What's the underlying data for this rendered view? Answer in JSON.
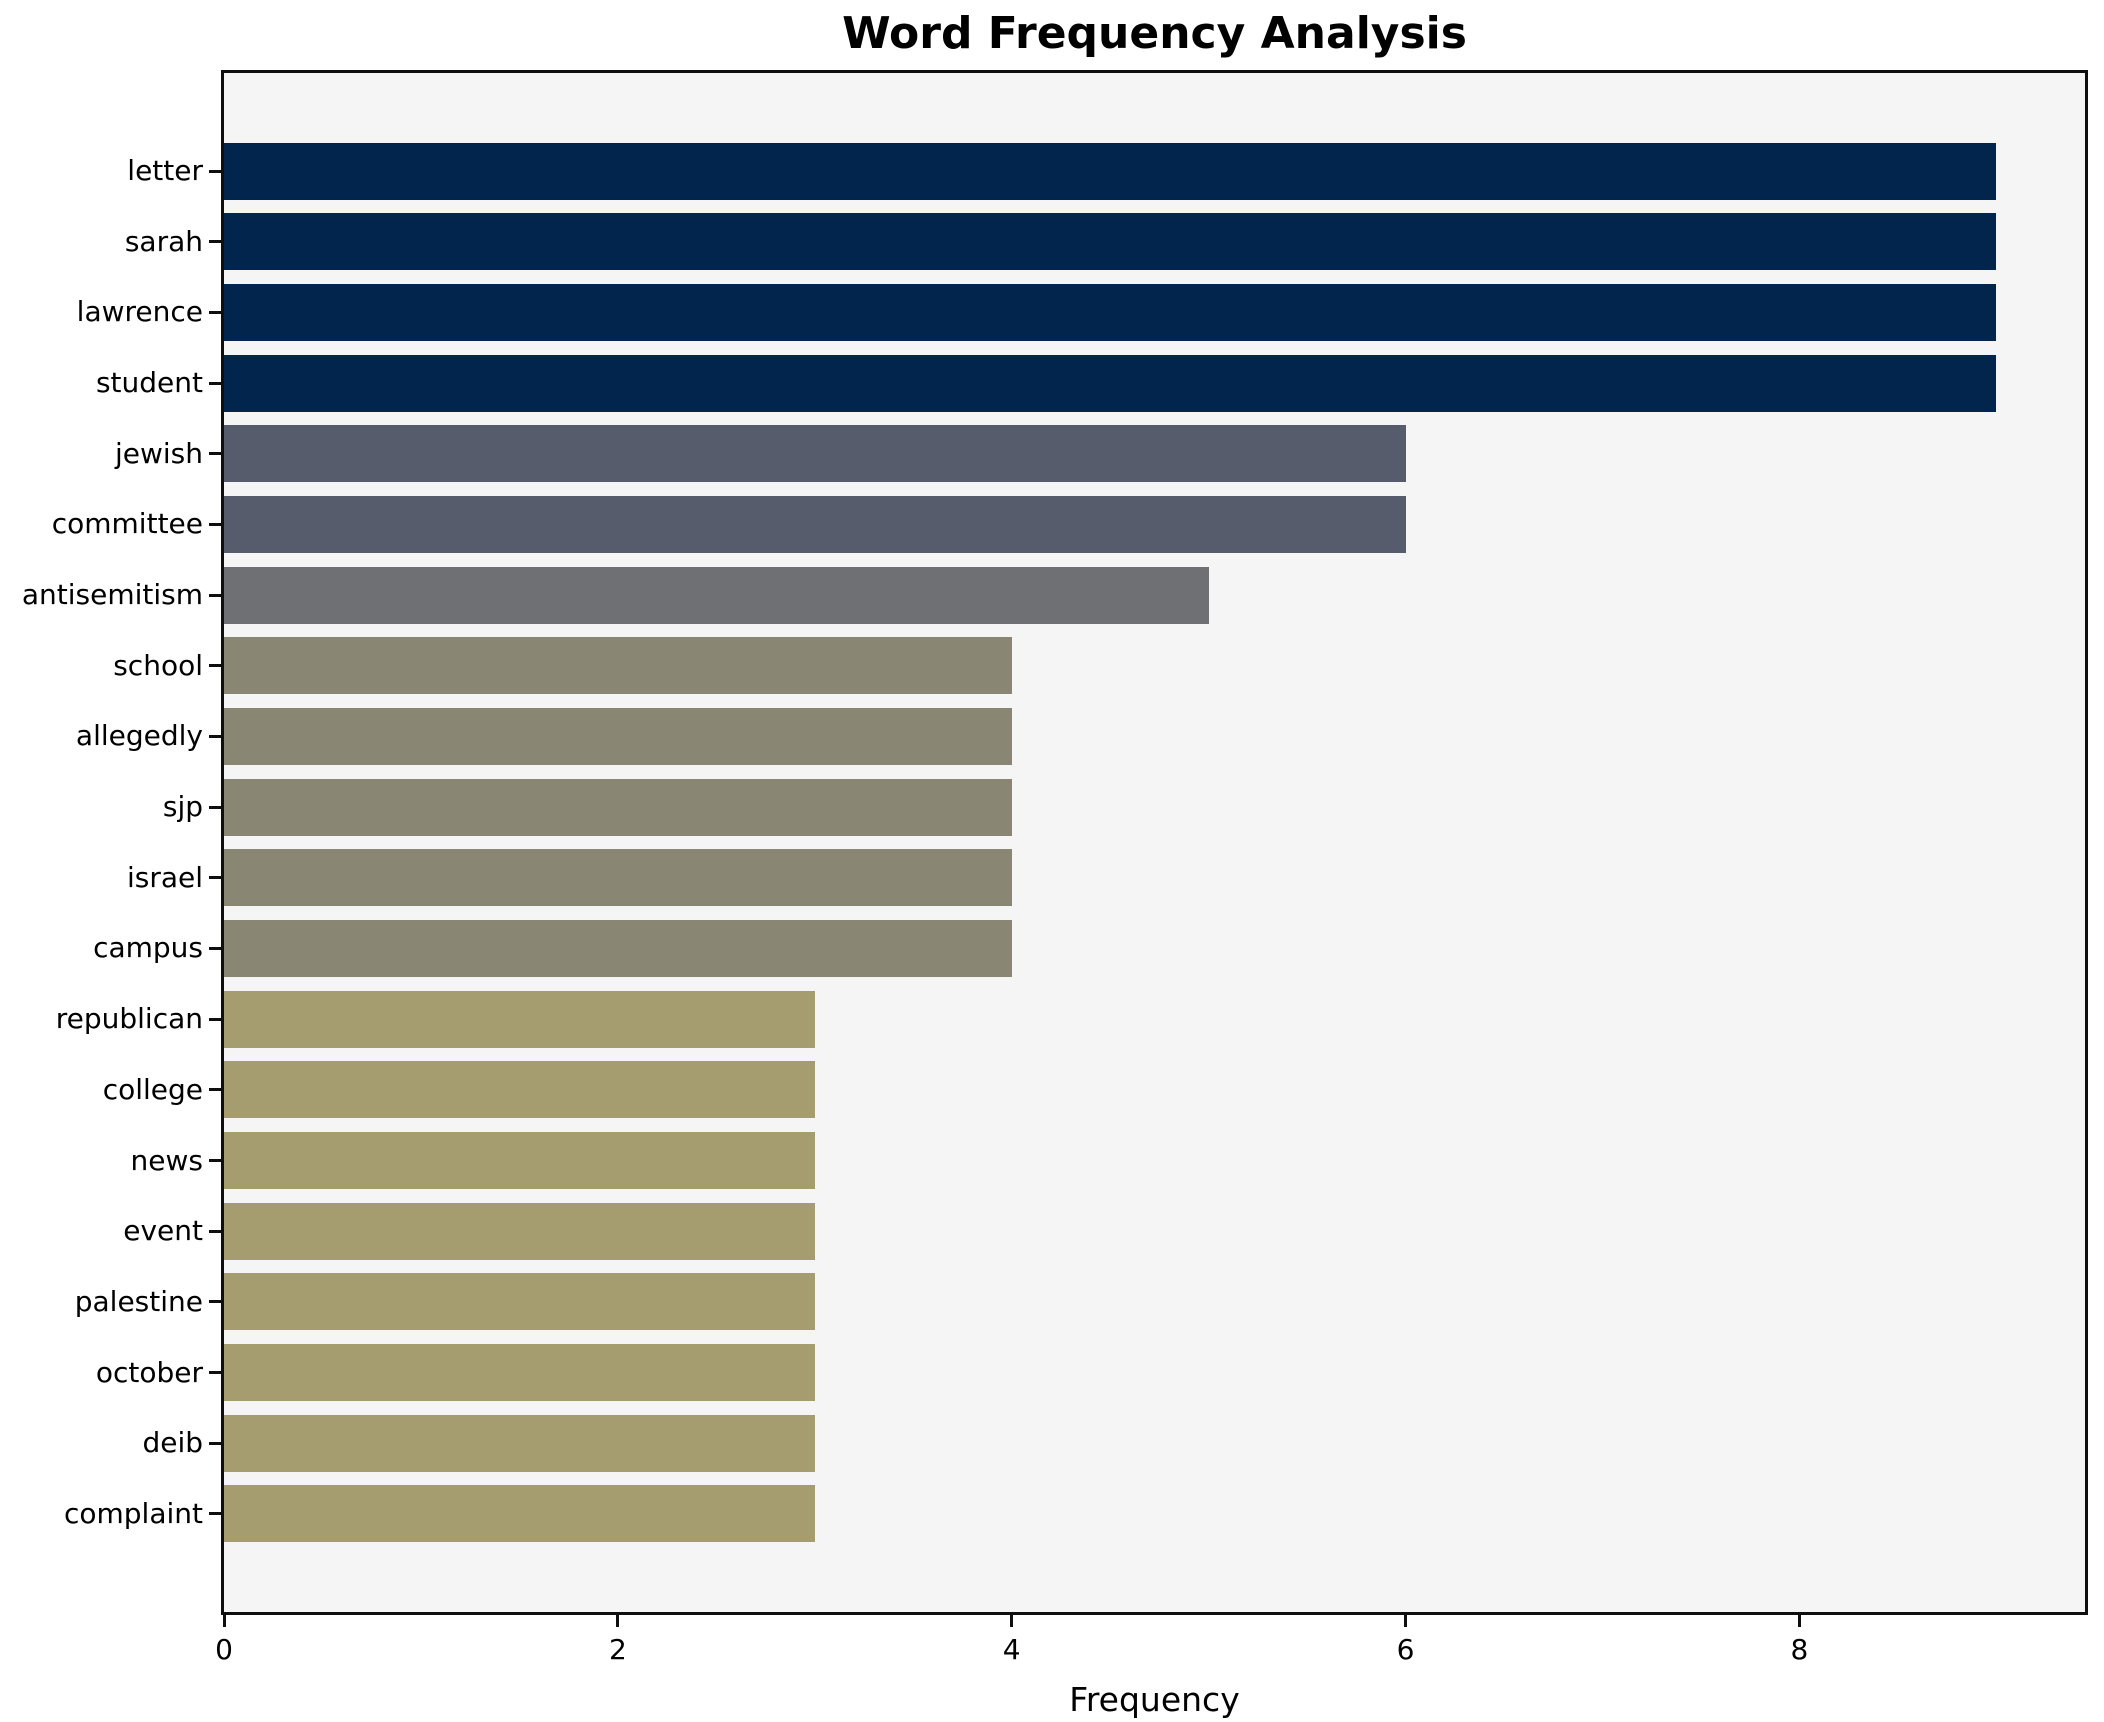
{
  "title": "Word Frequency Analysis",
  "chart_data": {
    "type": "bar",
    "orientation": "horizontal",
    "title": "Word Frequency Analysis",
    "xlabel": "Frequency",
    "ylabel": "",
    "categories": [
      "letter",
      "sarah",
      "lawrence",
      "student",
      "jewish",
      "committee",
      "antisemitism",
      "school",
      "allegedly",
      "sjp",
      "israel",
      "campus",
      "republican",
      "college",
      "news",
      "event",
      "palestine",
      "october",
      "deib",
      "complaint"
    ],
    "values": [
      9,
      9,
      9,
      9,
      6,
      6,
      5,
      4,
      4,
      4,
      4,
      4,
      3,
      3,
      3,
      3,
      3,
      3,
      3,
      3
    ],
    "bar_colors": [
      "#02254d",
      "#02254d",
      "#02254d",
      "#02254d",
      "#565c6b",
      "#565c6b",
      "#6e7073",
      "#8a8674",
      "#8a8674",
      "#8a8674",
      "#8a8674",
      "#8a8674",
      "#a59c6f",
      "#a59c6f",
      "#a59c6f",
      "#a59c6f",
      "#a59c6f",
      "#a59c6f",
      "#a59c6f",
      "#a59c6f"
    ],
    "palette": {
      "value_9": "#02254d",
      "value_6": "#565c6b",
      "value_5": "#6e7073",
      "value_4": "#8a8674",
      "value_3": "#a59c6f"
    },
    "xlim": [
      0,
      9.45
    ],
    "xticks": [
      0,
      2,
      4,
      6,
      8
    ],
    "grid": false,
    "legend": null,
    "plot_background": "#f5f5f6",
    "figure_background": "#ffffff",
    "spine_color": "#0f0f0f"
  }
}
